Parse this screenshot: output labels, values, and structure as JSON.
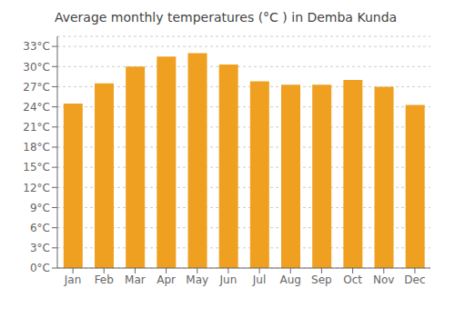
{
  "chart_data": {
    "type": "bar",
    "title": "Average monthly temperatures (°C ) in Demba Kunda",
    "categories": [
      "Jan",
      "Feb",
      "Mar",
      "Apr",
      "May",
      "Jun",
      "Jul",
      "Aug",
      "Sep",
      "Oct",
      "Nov",
      "Dec"
    ],
    "values": [
      24.5,
      27.5,
      30.0,
      31.5,
      32.0,
      30.3,
      27.8,
      27.3,
      27.3,
      28.0,
      27.0,
      24.3
    ],
    "color": "#F0A020",
    "ylim": [
      0,
      34.5
    ],
    "yticks": [
      {
        "value": 0,
        "label": "0°C"
      },
      {
        "value": 3,
        "label": "3°C"
      },
      {
        "value": 6,
        "label": "6°C"
      },
      {
        "value": 9,
        "label": "9°C"
      },
      {
        "value": 12,
        "label": "12°C"
      },
      {
        "value": 15,
        "label": "15°C"
      },
      {
        "value": 18,
        "label": "18°C"
      },
      {
        "value": 21,
        "label": "21°C"
      },
      {
        "value": 24,
        "label": "24°C"
      },
      {
        "value": 27,
        "label": "27°C"
      },
      {
        "value": 30,
        "label": "30°C"
      },
      {
        "value": 33,
        "label": "33°C"
      }
    ],
    "grid": true
  }
}
